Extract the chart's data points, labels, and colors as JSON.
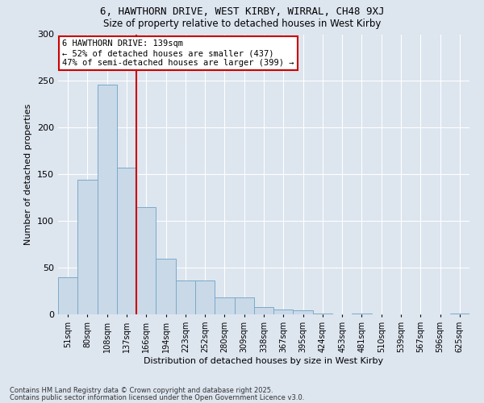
{
  "title1": "6, HAWTHORN DRIVE, WEST KIRBY, WIRRAL, CH48 9XJ",
  "title2": "Size of property relative to detached houses in West Kirby",
  "xlabel": "Distribution of detached houses by size in West Kirby",
  "ylabel": "Number of detached properties",
  "categories": [
    "51sqm",
    "80sqm",
    "108sqm",
    "137sqm",
    "166sqm",
    "194sqm",
    "223sqm",
    "252sqm",
    "280sqm",
    "309sqm",
    "338sqm",
    "367sqm",
    "395sqm",
    "424sqm",
    "453sqm",
    "481sqm",
    "510sqm",
    "539sqm",
    "567sqm",
    "596sqm",
    "625sqm"
  ],
  "values": [
    40,
    144,
    246,
    157,
    115,
    60,
    36,
    36,
    18,
    18,
    8,
    5,
    4,
    1,
    0,
    1,
    0,
    0,
    0,
    0,
    1
  ],
  "bar_color": "#c9d9e8",
  "bar_edge_color": "#7aaac8",
  "line_bin_index": 3,
  "annotation_text": "6 HAWTHORN DRIVE: 139sqm\n← 52% of detached houses are smaller (437)\n47% of semi-detached houses are larger (399) →",
  "annotation_box_color": "#ffffff",
  "annotation_box_edge_color": "#cc0000",
  "line_color": "#cc0000",
  "footer1": "Contains HM Land Registry data © Crown copyright and database right 2025.",
  "footer2": "Contains public sector information licensed under the Open Government Licence v3.0.",
  "background_color": "#dde5ef",
  "plot_background_color": "#dde5ef",
  "ylim": [
    0,
    300
  ],
  "yticks": [
    0,
    50,
    100,
    150,
    200,
    250,
    300
  ]
}
